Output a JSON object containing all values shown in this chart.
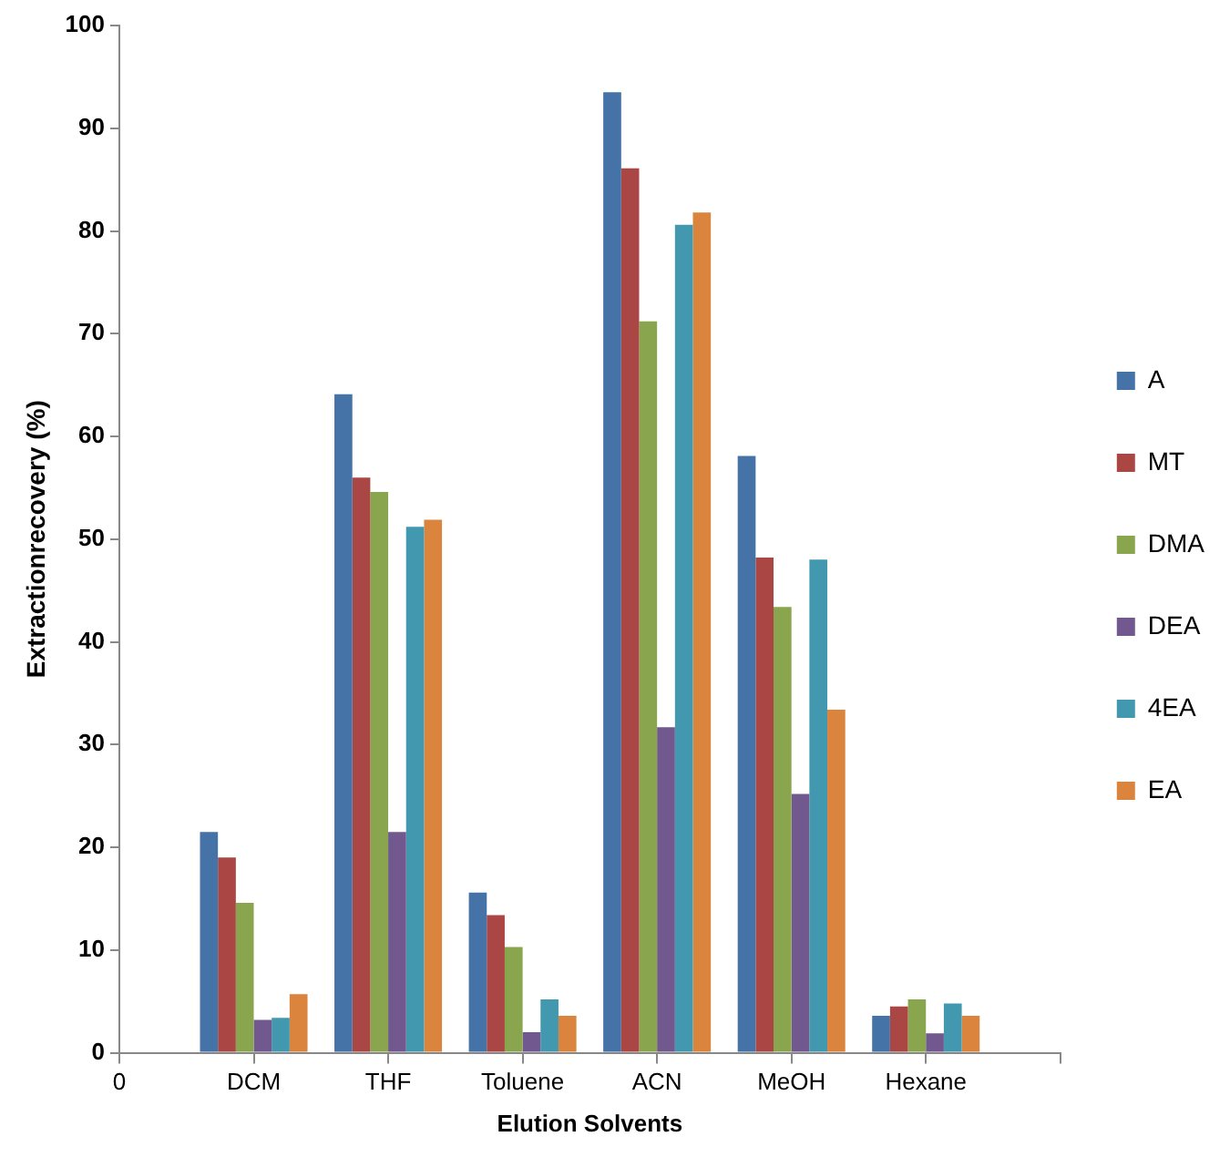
{
  "chart_data": {
    "type": "bar",
    "xlabel": "Elution Solvents",
    "ylabel": "Extractionrecovery (%)",
    "categories": [
      "0",
      "DCM",
      "THF",
      "Toluene",
      "ACN",
      "MeOH",
      "Hexane",
      null
    ],
    "series": [
      {
        "name": "A",
        "color": "#4572a7",
        "values": [
          null,
          21.5,
          64.1,
          15.6,
          93.5,
          58.1,
          3.6,
          null
        ]
      },
      {
        "name": "MT",
        "color": "#aa4643",
        "values": [
          null,
          19.0,
          56.0,
          13.4,
          86.1,
          48.2,
          4.5,
          null
        ]
      },
      {
        "name": "DMA",
        "color": "#89a54e",
        "values": [
          null,
          14.6,
          54.6,
          10.3,
          71.2,
          43.4,
          5.2,
          null
        ]
      },
      {
        "name": "DEA",
        "color": "#71588f",
        "values": [
          null,
          3.2,
          21.5,
          2.0,
          31.7,
          25.2,
          1.9,
          null
        ]
      },
      {
        "name": "4EA",
        "color": "#4198af",
        "values": [
          null,
          3.4,
          51.2,
          5.2,
          80.6,
          48.0,
          4.8,
          null
        ]
      },
      {
        "name": "EA",
        "color": "#db843d",
        "values": [
          null,
          5.7,
          51.9,
          3.6,
          81.8,
          33.4,
          3.6,
          null
        ]
      }
    ],
    "ylim": [
      0,
      100
    ],
    "yticks": [
      0,
      10,
      20,
      30,
      40,
      50,
      60,
      70,
      80,
      90,
      100
    ],
    "grid": false,
    "legend": "right"
  }
}
